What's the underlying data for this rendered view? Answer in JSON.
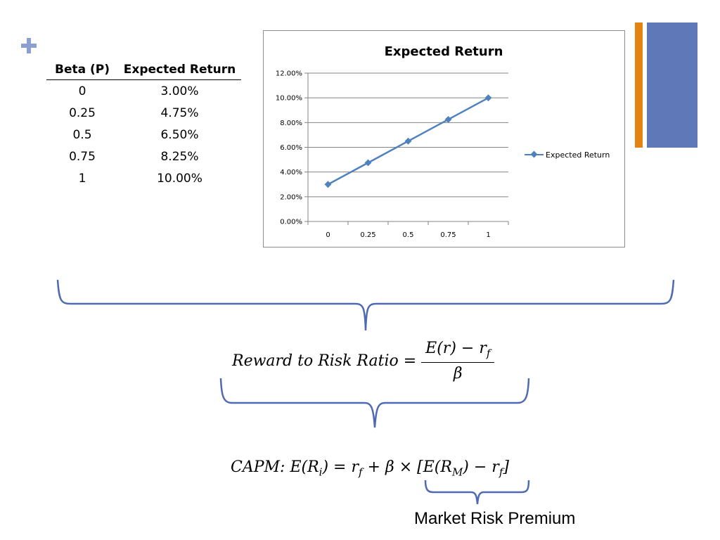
{
  "table": {
    "headers": [
      "Beta (P)",
      "Expected Return"
    ],
    "rows": [
      [
        "0",
        "3.00%"
      ],
      [
        "0.25",
        "4.75%"
      ],
      [
        "0.5",
        "6.50%"
      ],
      [
        "0.75",
        "8.25%"
      ],
      [
        "1",
        "10.00%"
      ]
    ]
  },
  "chart_data": {
    "type": "line",
    "title": "Expected Return",
    "categories": [
      "0",
      "0.25",
      "0.5",
      "0.75",
      "1"
    ],
    "series": [
      {
        "name": "Expected Return",
        "values": [
          3.0,
          4.75,
          6.5,
          8.25,
          10.0
        ],
        "color": "#4F81BD"
      }
    ],
    "y_ticks": [
      "0.00%",
      "2.00%",
      "4.00%",
      "6.00%",
      "8.00%",
      "10.00%",
      "12.00%"
    ],
    "ylim": [
      0,
      12
    ],
    "grid": true,
    "legend": "right"
  },
  "formulas": {
    "reward_lhs": "Reward to Risk Ratio =",
    "reward_num": "E(r) − r_f",
    "reward_den": "β",
    "capm": "CAPM: E(R_i) = r_f + β × [E(R_M) − r_f]"
  },
  "labels": {
    "market_risk_premium": "Market Risk Premium"
  },
  "colors": {
    "orange": "#E48312",
    "blue": "#5F78B8",
    "plus": "#8D9FD0",
    "brace": "#4F6AB0",
    "series": "#4F81BD"
  },
  "icons": {
    "plus": "plus-icon"
  }
}
